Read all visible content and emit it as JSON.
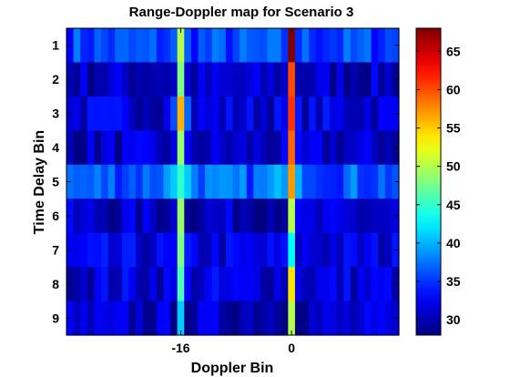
{
  "chart_data": {
    "type": "heatmap",
    "title": "Range-Doppler map for Scenario 3",
    "xlabel": "Doppler Bin",
    "ylabel": "Time Delay Bin",
    "x_ticks": [
      {
        "value": -16,
        "label": "-16"
      },
      {
        "value": 0,
        "label": "0"
      }
    ],
    "y_ticks": [
      "1",
      "2",
      "3",
      "4",
      "5",
      "6",
      "7",
      "8",
      "9"
    ],
    "x_range": [
      -32,
      15
    ],
    "rows": 9,
    "colorbar": {
      "ticks": [
        30,
        35,
        40,
        45,
        50,
        55,
        60,
        65
      ],
      "clim": [
        28,
        68
      ],
      "colormap": "jet"
    },
    "peaks": [
      {
        "doppler_bin": -16,
        "values": [
          50,
          48,
          56,
          49,
          45,
          49,
          48,
          46,
          41
        ]
      },
      {
        "doppler_bin": 0,
        "values": [
          68,
          60,
          61,
          59,
          57,
          50,
          43,
          54,
          50
        ]
      }
    ],
    "background_levels": [
      35,
      30,
      31,
      30,
      36,
      30,
      31,
      31,
      30
    ],
    "near_peak_levels": [
      {
        "row": 5,
        "doppler_bin": -17,
        "value": 41
      },
      {
        "row": 5,
        "doppler_bin": -15,
        "value": 41
      },
      {
        "row": 5,
        "doppler_bin": 1,
        "value": 40
      },
      {
        "row": 5,
        "doppler_bin": -1,
        "value": 39
      },
      {
        "row": 3,
        "doppler_bin": -17,
        "value": 36
      },
      {
        "row": 3,
        "doppler_bin": -15,
        "value": 37
      }
    ]
  }
}
